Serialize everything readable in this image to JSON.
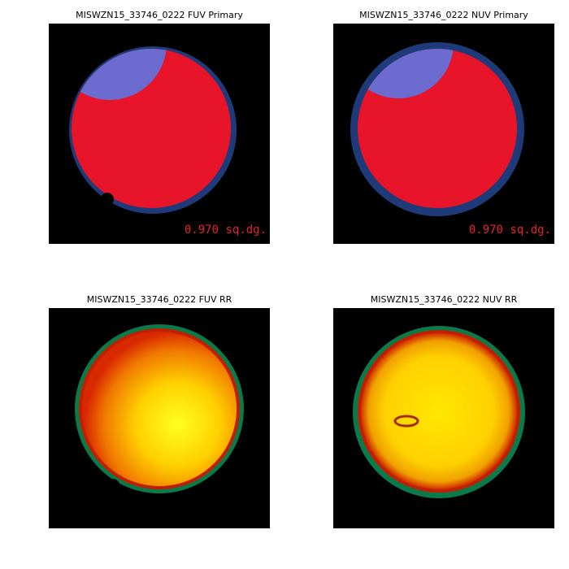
{
  "panels": [
    {
      "title": "MISWZN15_33746_0222 FUV Primary",
      "annotation": "0.970 sq.dg."
    },
    {
      "title": "MISWZN15_33746_0222 NUV Primary",
      "annotation": "0.970 sq.dg."
    },
    {
      "title": "MISWZN15_33746_0222 FUV RR"
    },
    {
      "title": "MISWZN15_33746_0222 NUV RR"
    }
  ]
}
